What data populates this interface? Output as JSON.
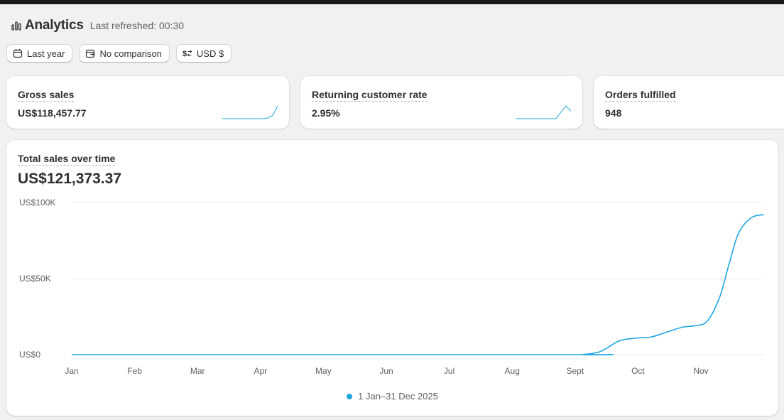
{
  "colors": {
    "accent": "#1ea7e1",
    "background": "#f1f1f1",
    "card": "#ffffff"
  },
  "header": {
    "icon": "bar-chart-icon",
    "title": "Analytics",
    "refreshed": "Last refreshed: 00:30"
  },
  "filters": [
    {
      "icon": "calendar-icon",
      "label": "Last year"
    },
    {
      "icon": "calendar-compare-icon",
      "label": "No comparison"
    },
    {
      "icon": "currency-exchange-icon",
      "label": "USD $"
    }
  ],
  "metrics": [
    {
      "label": "Gross sales",
      "value": "US$118,457.77",
      "has_sparkline": true
    },
    {
      "label": "Returning customer rate",
      "value": "2.95%",
      "has_sparkline": true
    },
    {
      "label": "Orders fulfilled",
      "value": "948",
      "has_sparkline": false
    }
  ],
  "main": {
    "label": "Total sales over time",
    "total": "US$121,373.37"
  },
  "chart_data": {
    "type": "line",
    "x": [
      "Jan",
      "Feb",
      "Mar",
      "Apr",
      "May",
      "Jun",
      "Jul",
      "Aug",
      "Sept",
      "Oct",
      "Nov"
    ],
    "ytick_labels": [
      "US$0",
      "US$50K",
      "US$100K"
    ],
    "ylim": [
      0,
      100000
    ],
    "grid": true,
    "legend_position": "bottom-center",
    "series": [
      {
        "name": "1 Jan–31 Dec 2025",
        "color": "#1ea7e1",
        "points": [
          [
            0,
            0
          ],
          [
            8,
            0
          ],
          [
            8.1,
            0
          ],
          [
            8.4,
            2000
          ],
          [
            8.7,
            9000
          ],
          [
            9.0,
            11000
          ],
          [
            9.2,
            11500
          ],
          [
            9.4,
            14000
          ],
          [
            9.7,
            18000
          ],
          [
            9.9,
            19000
          ],
          [
            10.1,
            22000
          ],
          [
            10.3,
            38000
          ],
          [
            10.45,
            60000
          ],
          [
            10.6,
            80000
          ],
          [
            10.8,
            90000
          ],
          [
            11.0,
            92000
          ]
        ]
      }
    ]
  },
  "sparklines": {
    "gross_sales": [
      0,
      0,
      0,
      0,
      0,
      0,
      0,
      0,
      0,
      0.05,
      0.25,
      1
    ],
    "returning_rate": [
      0,
      0,
      0,
      0,
      0,
      0,
      0,
      0,
      0,
      0.5,
      1,
      0.6
    ]
  }
}
